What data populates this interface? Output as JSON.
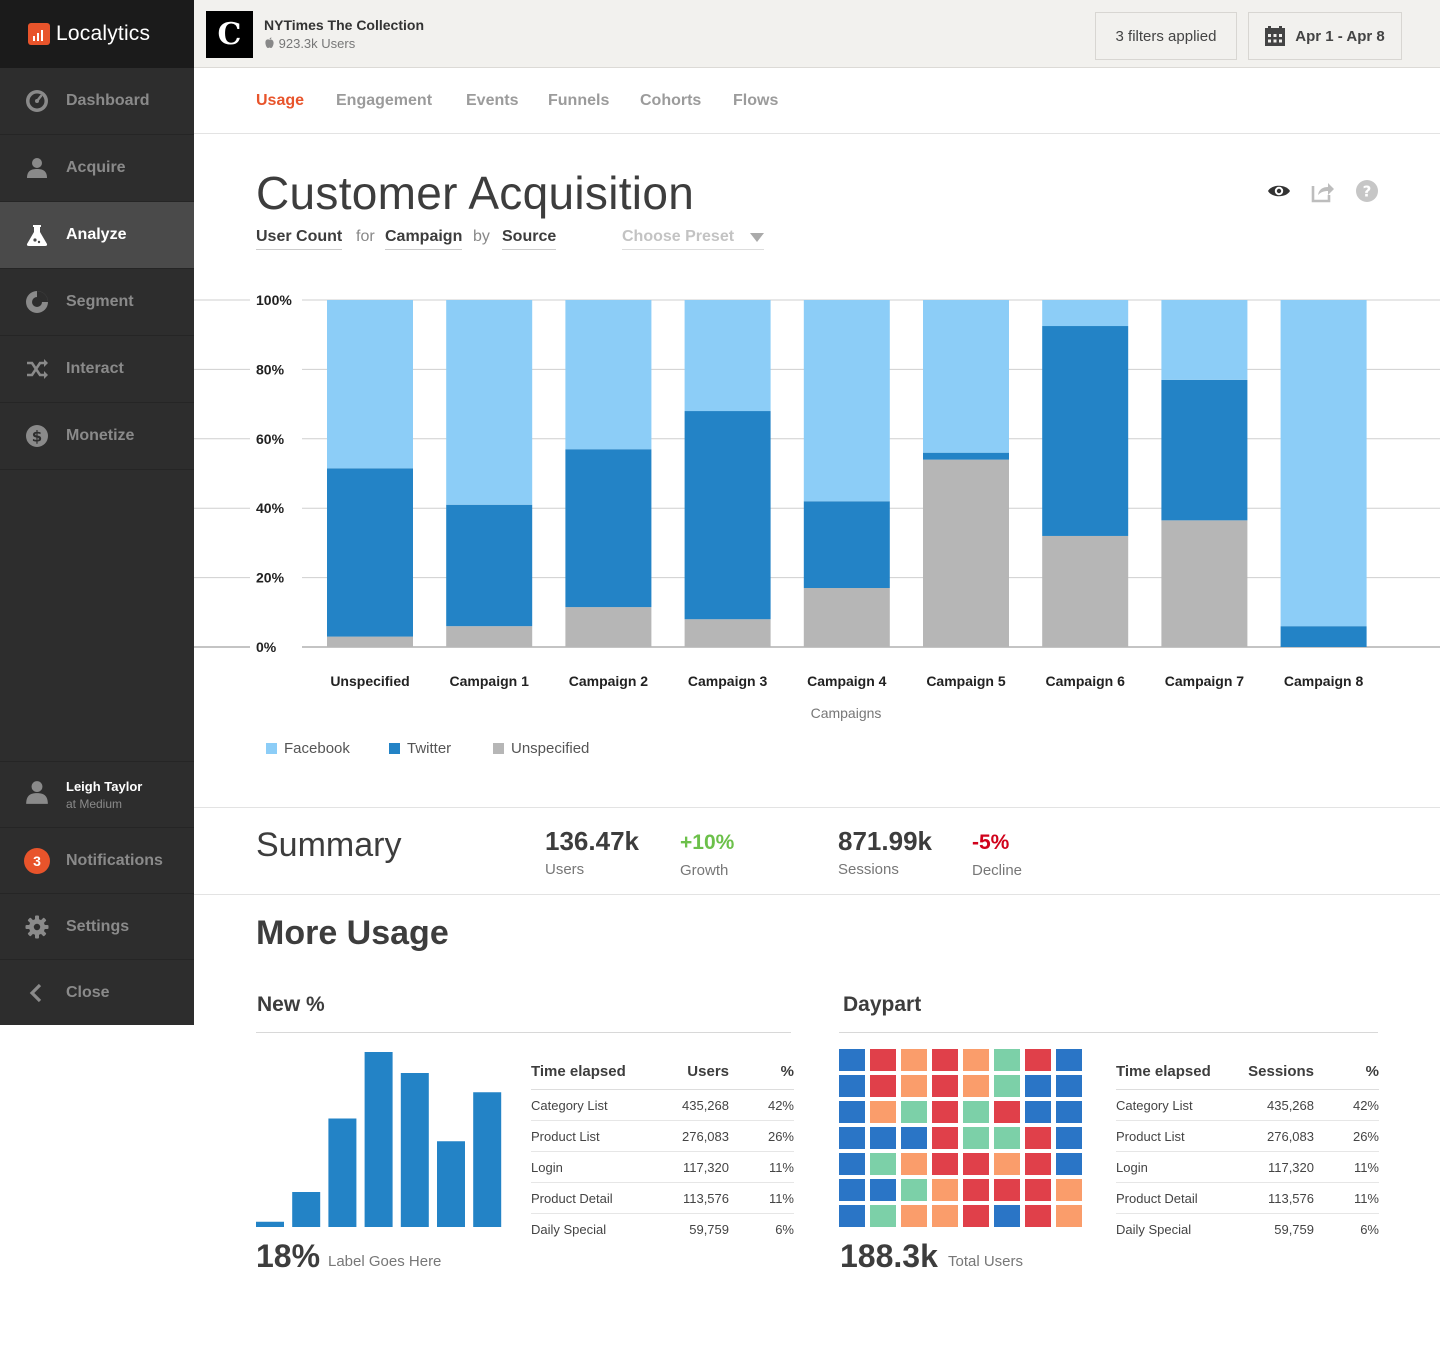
{
  "brand": {
    "name": "Localytics",
    "accent": "#e8542b"
  },
  "sidebar": {
    "items": [
      {
        "label": "Dashboard",
        "icon": "dashboard-gauge-icon",
        "active": false
      },
      {
        "label": "Acquire",
        "icon": "person-icon",
        "active": false
      },
      {
        "label": "Analyze",
        "icon": "flask-icon",
        "active": true
      },
      {
        "label": "Segment",
        "icon": "pie-segment-icon",
        "active": false
      },
      {
        "label": "Interact",
        "icon": "shuffle-icon",
        "active": false
      },
      {
        "label": "Monetize",
        "icon": "dollar-coin-icon",
        "active": false
      }
    ],
    "user": {
      "name": "Leigh Taylor",
      "org": "at Medium"
    },
    "notifications": {
      "label": "Notifications",
      "count": "3"
    },
    "settings_label": "Settings",
    "close_label": "Close"
  },
  "topbar": {
    "app_title": "NYTimes The Collection",
    "app_users": "923.3k Users",
    "app_icon_letter": "C",
    "filters_label": "3 filters applied",
    "date_range": "Apr 1 - Apr 8"
  },
  "tabs": [
    "Usage",
    "Engagement",
    "Events",
    "Funnels",
    "Cohorts",
    "Flows"
  ],
  "active_tab": "Usage",
  "page": {
    "title": "Customer Acquisition",
    "query": {
      "metric": "User Count",
      "for": "for",
      "dimension": "Campaign",
      "by": "by",
      "breakdown": "Source"
    },
    "preset_placeholder": "Choose Preset"
  },
  "chart_data": {
    "type": "bar",
    "stacked": true,
    "xlabel": "Campaigns",
    "ylabel": "",
    "ylim": [
      0,
      100
    ],
    "yticks": [
      "0%",
      "20%",
      "40%",
      "60%",
      "80%",
      "100%"
    ],
    "grid": true,
    "legend_placement": "bottom-left",
    "categories": [
      "Unspecified",
      "Campaign 1",
      "Campaign 2",
      "Campaign 3",
      "Campaign 4",
      "Campaign 5",
      "Campaign 6",
      "Campaign 7",
      "Campaign 8"
    ],
    "series": [
      {
        "name": "Unspecified",
        "color": "#b6b6b6",
        "values": [
          3,
          6,
          11.5,
          8,
          17,
          54,
          32,
          36.5,
          0
        ]
      },
      {
        "name": "Twitter",
        "color": "#2383c6",
        "values": [
          48.5,
          35,
          45.5,
          60,
          25,
          2,
          60.5,
          40.5,
          6
        ]
      },
      {
        "name": "Facebook",
        "color": "#8ccdf7",
        "values": [
          48.5,
          59,
          43,
          32,
          58,
          44,
          7.5,
          23,
          94
        ]
      }
    ],
    "legend_order": [
      "Facebook",
      "Twitter",
      "Unspecified"
    ]
  },
  "summary": {
    "title": "Summary",
    "users": {
      "value": "136.47k",
      "label": "Users"
    },
    "growth": {
      "value": "+10%",
      "label": "Growth",
      "color": "#6cc04a"
    },
    "sessions": {
      "value": "871.99k",
      "label": "Sessions"
    },
    "decline": {
      "value": "-5%",
      "label": "Decline",
      "color": "#d0021b"
    }
  },
  "more_usage": {
    "title": "More Usage",
    "new_pct": {
      "title": "New %",
      "bars": [
        3,
        20,
        62,
        100,
        88,
        49,
        77
      ],
      "bar_color": "#2383c6",
      "stat": "18%",
      "stat_label": "Label Goes Here",
      "table": {
        "headers": [
          "Time elapsed",
          "Users",
          "%"
        ],
        "rows": [
          [
            "Category List",
            "435,268",
            "42%"
          ],
          [
            "Product List",
            "276,083",
            "26%"
          ],
          [
            "Login",
            "117,320",
            "11%"
          ],
          [
            "Product Detail",
            "113,576",
            "11%"
          ],
          [
            "Daily Special",
            "59,759",
            "6%"
          ]
        ]
      }
    },
    "daypart": {
      "title": "Daypart",
      "palette": {
        "B": "#2a75c6",
        "R": "#e0404a",
        "O": "#fa9d6b",
        "G": "#7cd0a8"
      },
      "grid": [
        "BROROGRB",
        "BROROGBB",
        "BOGRGRBB",
        "BBBRGGRB",
        "BGORRORB",
        "BBGORRRO",
        "BGOORBRO"
      ],
      "stat": "188.3k",
      "stat_label": "Total Users",
      "table": {
        "headers": [
          "Time elapsed",
          "Sessions",
          "%"
        ],
        "rows": [
          [
            "Category List",
            "435,268",
            "42%"
          ],
          [
            "Product List",
            "276,083",
            "26%"
          ],
          [
            "Login",
            "117,320",
            "11%"
          ],
          [
            "Product Detail",
            "113,576",
            "11%"
          ],
          [
            "Daily Special",
            "59,759",
            "6%"
          ]
        ]
      }
    }
  }
}
